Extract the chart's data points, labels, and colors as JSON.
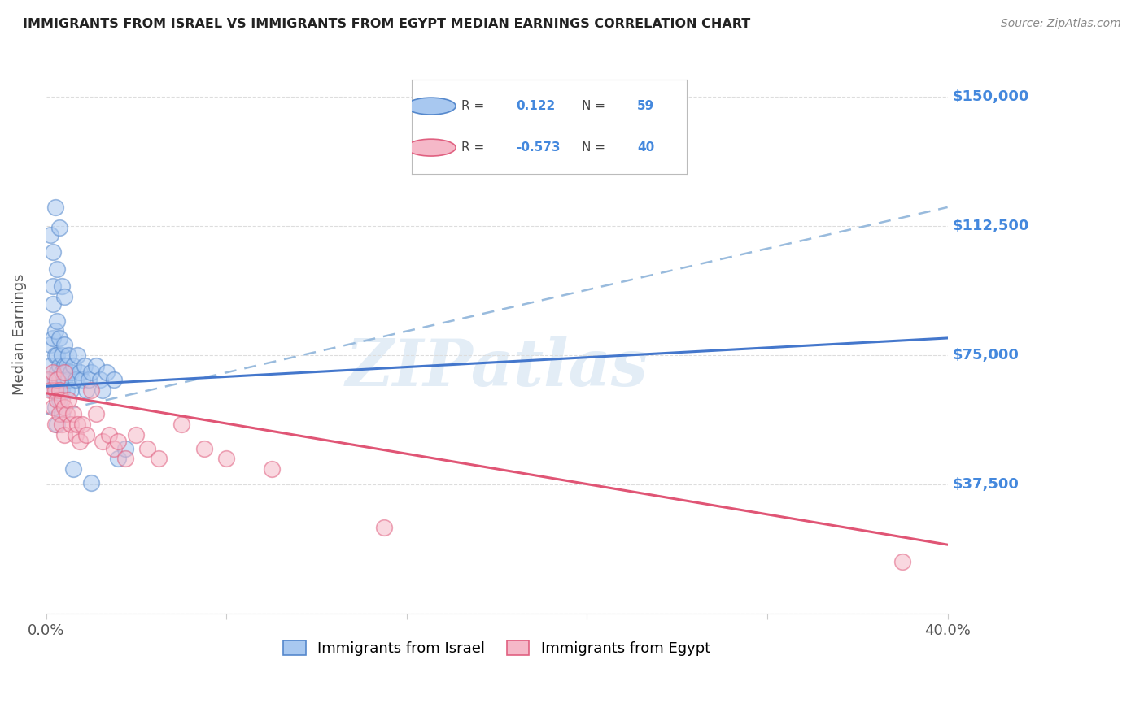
{
  "title": "IMMIGRANTS FROM ISRAEL VS IMMIGRANTS FROM EGYPT MEDIAN EARNINGS CORRELATION CHART",
  "source": "Source: ZipAtlas.com",
  "ylabel": "Median Earnings",
  "yticks": [
    0,
    37500,
    75000,
    112500,
    150000
  ],
  "ytick_labels": [
    "",
    "$37,500",
    "$75,000",
    "$112,500",
    "$150,000"
  ],
  "ylim": [
    0,
    162000
  ],
  "xlim": [
    0.0,
    0.4
  ],
  "legend_israel": {
    "R": "0.122",
    "N": "59"
  },
  "legend_egypt": {
    "R": "-0.573",
    "N": "40"
  },
  "legend_label_israel": "Immigrants from Israel",
  "legend_label_egypt": "Immigrants from Egypt",
  "color_israel_fill": "#A8C8F0",
  "color_israel_edge": "#5588CC",
  "color_egypt_fill": "#F5B8C8",
  "color_egypt_edge": "#E06080",
  "color_line_israel_solid": "#4477CC",
  "color_line_egypt_solid": "#E05575",
  "color_line_dashed": "#99BBDD",
  "color_ytick_label": "#4488DD",
  "color_title": "#222222",
  "color_source": "#888888",
  "israel_x": [
    0.001,
    0.002,
    0.002,
    0.003,
    0.003,
    0.003,
    0.003,
    0.004,
    0.004,
    0.004,
    0.004,
    0.005,
    0.005,
    0.005,
    0.005,
    0.005,
    0.006,
    0.006,
    0.006,
    0.006,
    0.007,
    0.007,
    0.007,
    0.007,
    0.008,
    0.008,
    0.008,
    0.009,
    0.009,
    0.009,
    0.01,
    0.01,
    0.011,
    0.011,
    0.012,
    0.013,
    0.014,
    0.015,
    0.016,
    0.017,
    0.018,
    0.019,
    0.02,
    0.022,
    0.024,
    0.025,
    0.027,
    0.03,
    0.032,
    0.035,
    0.002,
    0.003,
    0.004,
    0.005,
    0.006,
    0.007,
    0.008,
    0.012,
    0.02
  ],
  "israel_y": [
    68000,
    72000,
    78000,
    65000,
    80000,
    90000,
    95000,
    68000,
    75000,
    82000,
    60000,
    70000,
    65000,
    75000,
    85000,
    55000,
    68000,
    72000,
    80000,
    62000,
    70000,
    65000,
    75000,
    58000,
    72000,
    68000,
    78000,
    70000,
    65000,
    72000,
    68000,
    75000,
    70000,
    65000,
    72000,
    68000,
    75000,
    70000,
    68000,
    72000,
    65000,
    68000,
    70000,
    72000,
    68000,
    65000,
    70000,
    68000,
    45000,
    48000,
    110000,
    105000,
    118000,
    100000,
    112000,
    95000,
    92000,
    42000,
    38000
  ],
  "egypt_x": [
    0.001,
    0.002,
    0.003,
    0.003,
    0.004,
    0.004,
    0.005,
    0.005,
    0.006,
    0.006,
    0.007,
    0.007,
    0.008,
    0.008,
    0.009,
    0.01,
    0.011,
    0.012,
    0.013,
    0.014,
    0.015,
    0.016,
    0.018,
    0.02,
    0.022,
    0.025,
    0.028,
    0.03,
    0.032,
    0.035,
    0.04,
    0.045,
    0.05,
    0.06,
    0.07,
    0.08,
    0.1,
    0.15,
    0.38,
    0.008
  ],
  "egypt_y": [
    68000,
    65000,
    70000,
    60000,
    65000,
    55000,
    68000,
    62000,
    65000,
    58000,
    62000,
    55000,
    60000,
    52000,
    58000,
    62000,
    55000,
    58000,
    52000,
    55000,
    50000,
    55000,
    52000,
    65000,
    58000,
    50000,
    52000,
    48000,
    50000,
    45000,
    52000,
    48000,
    45000,
    55000,
    48000,
    45000,
    42000,
    25000,
    15000,
    70000
  ],
  "israel_trend_x": [
    0.0,
    0.4
  ],
  "israel_trend_y": [
    66000,
    80000
  ],
  "egypt_trend_x": [
    0.0,
    0.4
  ],
  "egypt_trend_y": [
    64000,
    20000
  ],
  "dashed_trend_x": [
    0.0,
    0.4
  ],
  "dashed_trend_y": [
    58000,
    118000
  ],
  "watermark_text": "ZIPatlas",
  "grid_color": "#DDDDDD",
  "spine_color": "#CCCCCC"
}
